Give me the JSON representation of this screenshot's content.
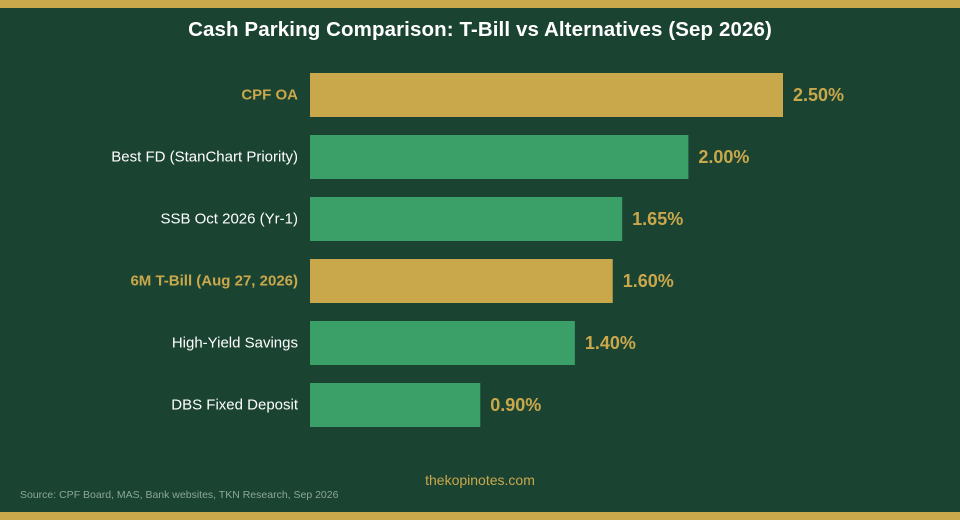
{
  "colors": {
    "background": "#1b4332",
    "accent_gold": "#c9a84c",
    "bar_green": "#3aa068",
    "label_white": "#ffffff",
    "source_text": "#8aa898"
  },
  "chart_data": {
    "type": "bar",
    "orientation": "horizontal",
    "title": "Cash Parking Comparison: T-Bill vs Alternatives (Sep 2026)",
    "categories": [
      "CPF OA",
      "Best FD (StanChart Priority)",
      "SSB Oct 2026 (Yr-1)",
      "6M T-Bill (Aug 27, 2026)",
      "High-Yield Savings",
      "DBS Fixed Deposit"
    ],
    "values": [
      2.5,
      2.0,
      1.65,
      1.6,
      1.4,
      0.9
    ],
    "value_labels": [
      "2.50%",
      "2.00%",
      "1.65%",
      "1.60%",
      "1.40%",
      "0.90%"
    ],
    "highlighted": [
      true,
      false,
      false,
      true,
      false,
      false
    ],
    "unit": "%",
    "xlim": [
      0,
      2.5
    ],
    "grid": false,
    "legend": "none"
  },
  "footer": {
    "watermark": "thekopinotes.com",
    "source": "Source: CPF Board, MAS, Bank websites, TKN Research, Sep 2026"
  }
}
